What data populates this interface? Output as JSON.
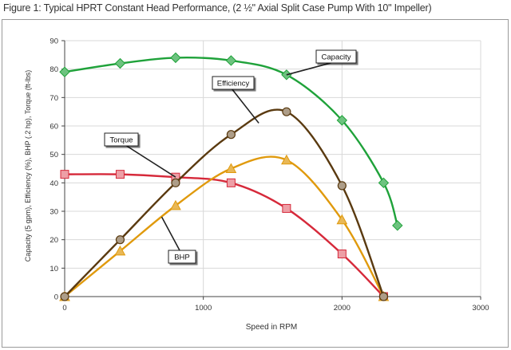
{
  "title": "Figure 1: Typical HPRT Constant Head Performance, (2 ½\" Axial Split Case Pump With 10\" Impeller)",
  "chart_data": {
    "type": "line",
    "title": "Figure 1: Typical HPRT Constant Head Performance, (2 ½\" Axial Split Case Pump With 10\" Impeller)",
    "xlabel": "Speed in RPM",
    "ylabel": "Capacity (5 gpm), Efficiency (%), BHP (.2 hp), Torque (ft-lbs)",
    "xlim": [
      0,
      3000
    ],
    "ylim": [
      0,
      90
    ],
    "xticks": [
      0,
      1000,
      2000,
      3000
    ],
    "yticks": [
      0,
      10,
      20,
      30,
      40,
      50,
      60,
      70,
      80,
      90
    ],
    "grid": true,
    "series": [
      {
        "name": "Capacity",
        "color": "#1fa23a",
        "marker": "diamond",
        "x": [
          0,
          400,
          800,
          1200,
          1600,
          2000,
          2300,
          2400
        ],
        "y": [
          79,
          82,
          84,
          83,
          78,
          62,
          40,
          25
        ]
      },
      {
        "name": "Efficiency",
        "color": "#5a3a10",
        "marker": "circle",
        "x": [
          0,
          400,
          800,
          1200,
          1600,
          2000,
          2300
        ],
        "y": [
          0,
          20,
          40,
          57,
          65,
          39,
          0
        ]
      },
      {
        "name": "Torque",
        "color": "#d6293a",
        "marker": "square",
        "x": [
          0,
          400,
          800,
          1200,
          1600,
          2000,
          2300
        ],
        "y": [
          43,
          43,
          42,
          40,
          31,
          15,
          0
        ]
      },
      {
        "name": "BHP",
        "color": "#e09a0d",
        "marker": "triangle",
        "x": [
          0,
          400,
          800,
          1200,
          1600,
          2000,
          2300
        ],
        "y": [
          0,
          16,
          32,
          45,
          48,
          27,
          0
        ]
      }
    ]
  }
}
